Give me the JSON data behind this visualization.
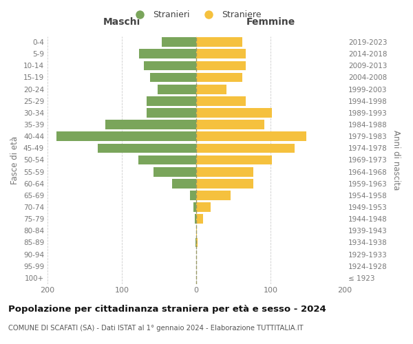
{
  "age_groups": [
    "100+",
    "95-99",
    "90-94",
    "85-89",
    "80-84",
    "75-79",
    "70-74",
    "65-69",
    "60-64",
    "55-59",
    "50-54",
    "45-49",
    "40-44",
    "35-39",
    "30-34",
    "25-29",
    "20-24",
    "15-19",
    "10-14",
    "5-9",
    "0-4"
  ],
  "birth_years": [
    "≤ 1923",
    "1924-1928",
    "1929-1933",
    "1934-1938",
    "1939-1943",
    "1944-1948",
    "1949-1953",
    "1954-1958",
    "1959-1963",
    "1964-1968",
    "1969-1973",
    "1974-1978",
    "1979-1983",
    "1984-1988",
    "1989-1993",
    "1994-1998",
    "1999-2003",
    "2004-2008",
    "2009-2013",
    "2014-2018",
    "2019-2023"
  ],
  "males": [
    0,
    0,
    0,
    1,
    0,
    2,
    4,
    8,
    32,
    57,
    78,
    132,
    188,
    122,
    67,
    67,
    52,
    62,
    70,
    77,
    46
  ],
  "females": [
    0,
    0,
    0,
    2,
    1,
    9,
    19,
    46,
    77,
    77,
    102,
    132,
    148,
    92,
    102,
    67,
    41,
    62,
    67,
    67,
    62
  ],
  "male_color": "#7aa55b",
  "female_color": "#f5c13e",
  "dashed_line_color": "#999966",
  "title": "Popolazione per cittadinanza straniera per età e sesso - 2024",
  "subtitle": "COMUNE DI SCAFATI (SA) - Dati ISTAT al 1° gennaio 2024 - Elaborazione TUTTITALIA.IT",
  "xlabel_left": "Maschi",
  "xlabel_right": "Femmine",
  "ylabel_left": "Fasce di età",
  "ylabel_right": "Anni di nascita",
  "legend_male": "Stranieri",
  "legend_female": "Straniere",
  "xlim": 200,
  "background_color": "#ffffff",
  "grid_color": "#cccccc"
}
